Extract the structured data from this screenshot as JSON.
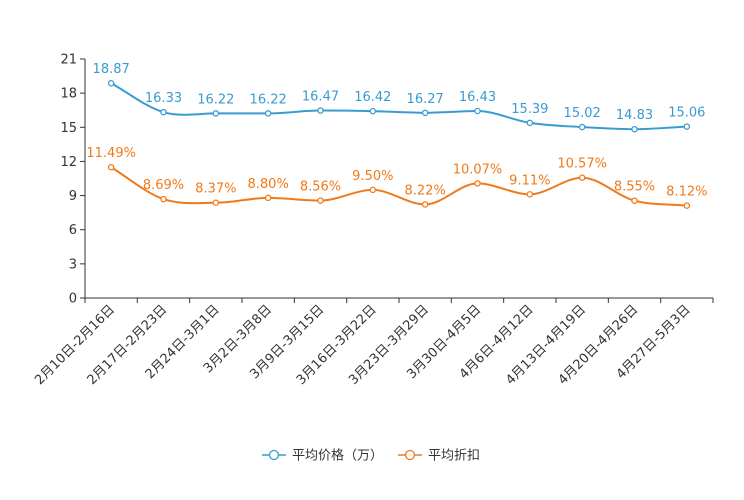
{
  "chart_data": {
    "type": "line",
    "title": "",
    "xlabel": "",
    "ylabel": "",
    "ylim": [
      0,
      21
    ],
    "yticks": [
      0,
      3,
      6,
      9,
      12,
      15,
      18,
      21
    ],
    "grid": false,
    "legend_position": "bottom-center",
    "categories": [
      "2月10日-2月16日",
      "2月17日-2月23日",
      "2月24日-3月1日",
      "3月2日-3月8日",
      "3月9日-3月15日",
      "3月16日-3月22日",
      "3月23日-3月29日",
      "3月30日-4月5日",
      "4月6日-4月12日",
      "4月13日-4月19日",
      "4月20日-4月26日",
      "4月27日-5月3日"
    ],
    "series": [
      {
        "name": "平均价格（万）",
        "color": "#3a9bd0",
        "values": [
          18.87,
          16.33,
          16.22,
          16.22,
          16.47,
          16.42,
          16.27,
          16.43,
          15.39,
          15.02,
          14.83,
          15.06
        ],
        "labels": [
          "18.87",
          "16.33",
          "16.22",
          "16.22",
          "16.47",
          "16.42",
          "16.27",
          "16.43",
          "15.39",
          "15.02",
          "14.83",
          "15.06"
        ]
      },
      {
        "name": "平均折扣",
        "color": "#f07a1a",
        "values": [
          11.49,
          8.69,
          8.37,
          8.8,
          8.56,
          9.5,
          8.22,
          10.07,
          9.11,
          10.57,
          8.55,
          8.12
        ],
        "labels": [
          "11.49%",
          "8.69%",
          "8.37%",
          "8.80%",
          "8.56%",
          "9.50%",
          "8.22%",
          "10.07%",
          "9.11%",
          "10.57%",
          "8.55%",
          "8.12%"
        ]
      }
    ]
  }
}
